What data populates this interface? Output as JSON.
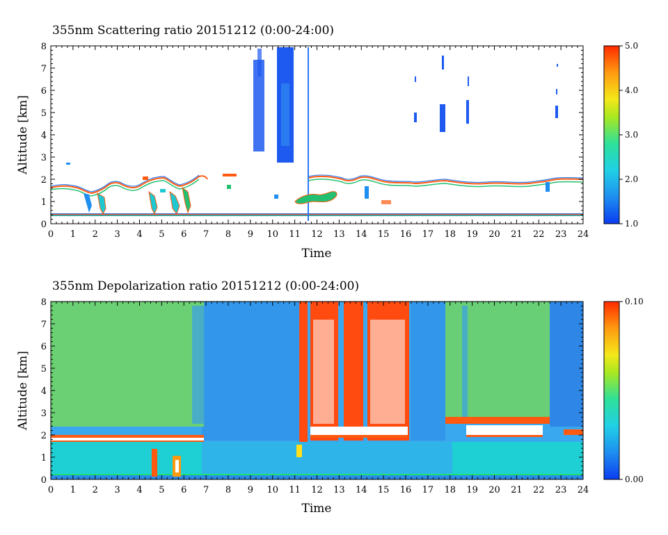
{
  "chart_data": [
    {
      "type": "heatmap",
      "title": "355nm Scattering ratio  20151212 (0:00-24:00)",
      "xlabel": "Time",
      "ylabel": "Altitude [km]",
      "xlim": [
        0,
        24
      ],
      "ylim": [
        0,
        8
      ],
      "x_ticks": [
        "0",
        "1",
        "2",
        "3",
        "4",
        "5",
        "6",
        "7",
        "8",
        "9",
        "10",
        "11",
        "12",
        "13",
        "14",
        "15",
        "16",
        "17",
        "18",
        "19",
        "20",
        "21",
        "22",
        "23",
        "24"
      ],
      "y_ticks": [
        "0",
        "1",
        "2",
        "3",
        "4",
        "5",
        "6",
        "7",
        "8"
      ],
      "colorbar": {
        "min": 1.0,
        "max": 5.0,
        "tick_labels": [
          "1.0",
          "2.0",
          "3.0",
          "4.0",
          "5.0"
        ]
      },
      "colors": {
        "low": "#0a3cf0",
        "mid": "#1ee0b0",
        "high": "#ff3a00"
      }
    },
    {
      "type": "heatmap",
      "title": "355nm Depolarization ratio  20151212 (0:00-24:00)",
      "xlabel": "Time",
      "ylabel": "Altitude [km]",
      "xlim": [
        0,
        24
      ],
      "ylim": [
        0,
        8
      ],
      "x_ticks": [
        "0",
        "1",
        "2",
        "3",
        "4",
        "5",
        "6",
        "7",
        "8",
        "9",
        "10",
        "11",
        "12",
        "13",
        "14",
        "15",
        "16",
        "17",
        "18",
        "19",
        "20",
        "21",
        "22",
        "23",
        "24"
      ],
      "y_ticks": [
        "0",
        "1",
        "2",
        "3",
        "4",
        "5",
        "6",
        "7",
        "8"
      ],
      "colorbar": {
        "min": 0.0,
        "max": 0.1,
        "tick_labels": [
          "0.00",
          "0.10"
        ]
      },
      "colors": {
        "low": "#0a3cf0",
        "mid": "#1ee0b0",
        "high": "#ff3a00"
      }
    }
  ]
}
